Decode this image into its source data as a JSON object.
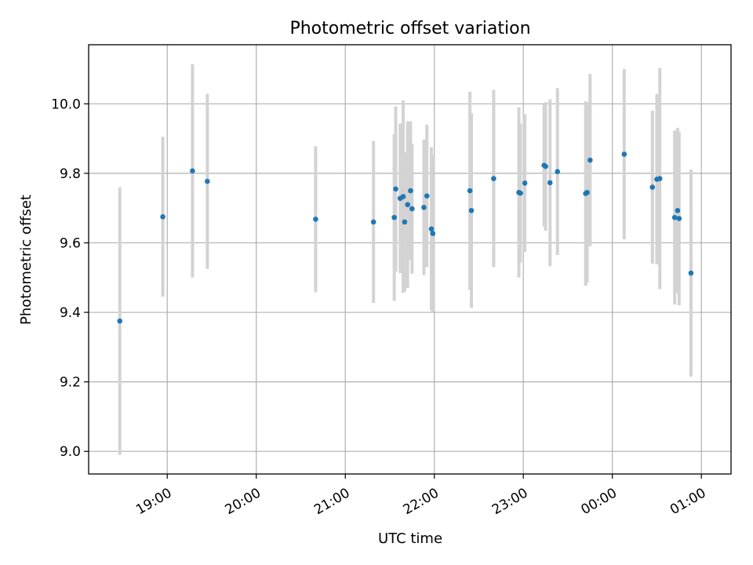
{
  "chart_data": {
    "type": "scatter",
    "title": "Photometric offset variation",
    "xlabel": "UTC time",
    "ylabel": "Photometric offset",
    "x_ticks": [
      "19:00",
      "20:00",
      "21:00",
      "22:00",
      "23:00",
      "00:00",
      "01:00"
    ],
    "y_ticks": [
      "9.0",
      "9.2",
      "9.4",
      "9.6",
      "9.8",
      "10.0"
    ],
    "xlim": [
      "18:07",
      "01:20"
    ],
    "ylim": [
      8.935,
      10.17
    ],
    "grid": true,
    "colors": {
      "point": "#1f77b4",
      "errorbar": "#d3d3d3",
      "grid": "#b0b0b0"
    },
    "points": [
      {
        "x": "18:28",
        "y": 9.375,
        "err": 0.385
      },
      {
        "x": "18:57",
        "y": 9.675,
        "err": 0.23
      },
      {
        "x": "19:17",
        "y": 9.807,
        "err": 0.307
      },
      {
        "x": "19:27",
        "y": 9.777,
        "err": 0.252
      },
      {
        "x": "20:40",
        "y": 9.668,
        "err": 0.21
      },
      {
        "x": "21:19",
        "y": 9.66,
        "err": 0.233
      },
      {
        "x": "21:33",
        "y": 9.673,
        "err": 0.24
      },
      {
        "x": "21:34",
        "y": 9.755,
        "err": 0.238
      },
      {
        "x": "21:37",
        "y": 9.728,
        "err": 0.215
      },
      {
        "x": "21:39",
        "y": 9.733,
        "err": 0.277
      },
      {
        "x": "21:40",
        "y": 9.66,
        "err": 0.2
      },
      {
        "x": "21:42",
        "y": 9.71,
        "err": 0.24
      },
      {
        "x": "21:44",
        "y": 9.75,
        "err": 0.2
      },
      {
        "x": "21:45",
        "y": 9.698,
        "err": 0.187
      },
      {
        "x": "21:53",
        "y": 9.702,
        "err": 0.195
      },
      {
        "x": "21:55",
        "y": 9.735,
        "err": 0.205
      },
      {
        "x": "21:58",
        "y": 9.64,
        "err": 0.235
      },
      {
        "x": "21:59",
        "y": 9.627,
        "err": 0.225
      },
      {
        "x": "22:24",
        "y": 9.75,
        "err": 0.285
      },
      {
        "x": "22:25",
        "y": 9.693,
        "err": 0.28
      },
      {
        "x": "22:40",
        "y": 9.785,
        "err": 0.255
      },
      {
        "x": "22:57",
        "y": 9.745,
        "err": 0.245
      },
      {
        "x": "22:58",
        "y": 9.743,
        "err": 0.2
      },
      {
        "x": "23:01",
        "y": 9.772,
        "err": 0.198
      },
      {
        "x": "23:14",
        "y": 9.823,
        "err": 0.175
      },
      {
        "x": "23:15",
        "y": 9.82,
        "err": 0.185
      },
      {
        "x": "23:18",
        "y": 9.773,
        "err": 0.24
      },
      {
        "x": "23:23",
        "y": 9.805,
        "err": 0.24
      },
      {
        "x": "23:42",
        "y": 9.742,
        "err": 0.265
      },
      {
        "x": "23:43",
        "y": 9.745,
        "err": 0.26
      },
      {
        "x": "23:45",
        "y": 9.838,
        "err": 0.248
      },
      {
        "x": "00:08",
        "y": 9.855,
        "err": 0.245
      },
      {
        "x": "00:27",
        "y": 9.76,
        "err": 0.22
      },
      {
        "x": "00:30",
        "y": 9.783,
        "err": 0.245
      },
      {
        "x": "00:32",
        "y": 9.785,
        "err": 0.318
      },
      {
        "x": "00:42",
        "y": 9.673,
        "err": 0.25
      },
      {
        "x": "00:44",
        "y": 9.693,
        "err": 0.238
      },
      {
        "x": "00:45",
        "y": 9.67,
        "err": 0.25
      },
      {
        "x": "00:53",
        "y": 9.513,
        "err": 0.298
      }
    ]
  }
}
